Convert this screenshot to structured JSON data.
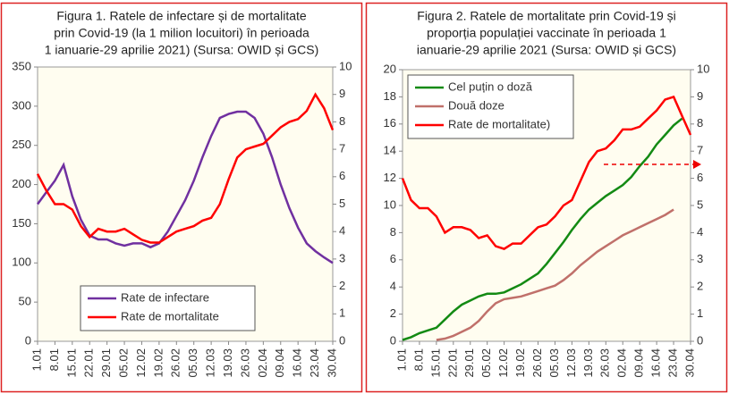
{
  "chart_data": [
    {
      "type": "line",
      "title": [
        "Figura 1.  Ratele de infectare și de mortalitate",
        "prin  Covid-19 (la 1 milion locuitori) în perioada",
        "1 ianuarie-29 aprilie 2021) (Sursa:  OWID și GCS)"
      ],
      "categories": [
        "1.01",
        null,
        "8.01",
        null,
        "15.01",
        null,
        "22.01",
        null,
        "29.01",
        null,
        "05.02",
        null,
        "12.02",
        null,
        "19.02",
        null,
        "26.02",
        null,
        "05.03",
        null,
        "12.03",
        null,
        "19.03",
        null,
        "26.03",
        null,
        "02.04",
        null,
        "09.04",
        null,
        "16.04",
        null,
        "23.04",
        null,
        "30.04"
      ],
      "series": [
        {
          "name": "Rate de infectare",
          "color": "#7030a0",
          "axis": "y",
          "values": [
            175,
            190,
            205,
            225,
            185,
            155,
            135,
            130,
            130,
            125,
            122,
            125,
            125,
            120,
            125,
            140,
            160,
            180,
            205,
            235,
            262,
            285,
            290,
            293,
            293,
            285,
            265,
            235,
            200,
            170,
            145,
            125,
            115,
            107,
            100
          ]
        },
        {
          "name": "Rate de mortalitate",
          "color": "#ff0000",
          "axis": "y2",
          "values": [
            6.1,
            5.5,
            5.0,
            5.0,
            4.8,
            4.2,
            3.8,
            4.1,
            4.0,
            4.0,
            4.1,
            3.9,
            3.7,
            3.6,
            3.6,
            3.8,
            4.0,
            4.1,
            4.2,
            4.4,
            4.5,
            5.0,
            5.9,
            6.7,
            7.0,
            7.1,
            7.2,
            7.5,
            7.8,
            8.0,
            8.1,
            8.4,
            9.0,
            8.5,
            7.7
          ]
        }
      ],
      "ylim": [
        0,
        350
      ],
      "yticks": [
        0,
        50,
        100,
        150,
        200,
        250,
        300,
        350
      ],
      "y2lim": [
        0,
        10
      ],
      "y2ticks": [
        0,
        1,
        2,
        3,
        4,
        5,
        6,
        7,
        8,
        9,
        10
      ],
      "legend": "lower center"
    },
    {
      "type": "line",
      "title": [
        "Figura 2. Ratele de mortalitate  prin Covid-19 și",
        "proporția  populației vaccinate în perioada 1",
        "ianuarie-29 aprilie 2021 (Sursa:  OWID și GCS)"
      ],
      "categories": [
        "1.01",
        null,
        "8.01",
        null,
        "15.01",
        null,
        "22.01",
        null,
        "29.01",
        null,
        "05.02",
        null,
        "12.02",
        null,
        "19.02",
        null,
        "26.02",
        null,
        "05.03",
        null,
        "12.03",
        null,
        "19.03",
        null,
        "26.03",
        null,
        "02.04",
        null,
        "09.04",
        null,
        "16.04",
        null,
        "23.04",
        null,
        "30.04"
      ],
      "series": [
        {
          "name": "Cel puțin o doză",
          "color": "#138a13",
          "axis": "y",
          "values": [
            0.1,
            0.3,
            0.6,
            0.8,
            1.0,
            1.6,
            2.2,
            2.7,
            3.0,
            3.3,
            3.5,
            3.5,
            3.6,
            3.9,
            4.2,
            4.6,
            5.0,
            5.7,
            6.5,
            7.3,
            8.2,
            9.0,
            9.7,
            10.2,
            10.7,
            11.1,
            11.5,
            12.1,
            12.9,
            13.6,
            14.5,
            15.2,
            15.9,
            16.4,
            null
          ]
        },
        {
          "name": "Două doze",
          "color": "#c0706a",
          "axis": "y",
          "values": [
            null,
            null,
            null,
            null,
            0.1,
            0.2,
            0.4,
            0.7,
            1.0,
            1.5,
            2.2,
            2.8,
            3.1,
            3.2,
            3.3,
            3.5,
            3.7,
            3.9,
            4.1,
            4.5,
            5.0,
            5.6,
            6.1,
            6.6,
            7.0,
            7.4,
            7.8,
            8.1,
            8.4,
            8.7,
            9.0,
            9.3,
            9.7,
            null,
            null
          ]
        },
        {
          "name": "Rate de mortalitate)",
          "color": "#ff0000",
          "axis": "y2",
          "values": [
            6.0,
            5.2,
            4.9,
            4.9,
            4.6,
            4.0,
            4.2,
            4.2,
            4.1,
            3.8,
            3.9,
            3.5,
            3.4,
            3.6,
            3.6,
            3.9,
            4.2,
            4.3,
            4.6,
            5.0,
            5.2,
            5.9,
            6.6,
            7.0,
            7.1,
            7.4,
            7.8,
            7.8,
            7.9,
            8.2,
            8.5,
            8.9,
            9.0,
            8.3,
            7.6
          ]
        }
      ],
      "ylim": [
        0,
        20
      ],
      "yticks": [
        0,
        2,
        4,
        6,
        8,
        10,
        12,
        14,
        16,
        18,
        20
      ],
      "y2lim": [
        0,
        10
      ],
      "y2ticks": [
        0,
        1,
        2,
        3,
        4,
        5,
        6,
        7,
        8,
        9,
        10
      ],
      "legend": "upper left"
    }
  ]
}
